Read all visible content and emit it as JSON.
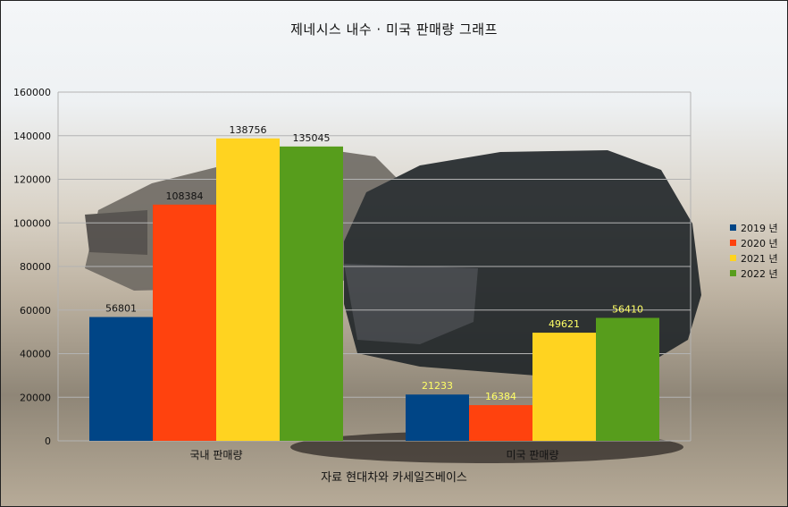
{
  "chart_data": {
    "type": "bar",
    "title": "제네시스 내수 · 미국 판매량 그래프",
    "xlabel": "자료 현대차와 카세일즈베이스",
    "ylabel": "",
    "categories": [
      "국내 판매량",
      "미국 판매량"
    ],
    "series": [
      {
        "name": "2019 년",
        "color": "#004586",
        "values": [
          56801,
          21233
        ]
      },
      {
        "name": "2020 년",
        "color": "#ff420e",
        "values": [
          108384,
          16384
        ]
      },
      {
        "name": "2021 년",
        "color": "#ffd320",
        "values": [
          138756,
          49621
        ]
      },
      {
        "name": "2022 년",
        "color": "#579d1c",
        "values": [
          135045,
          56410
        ]
      }
    ],
    "ylim": [
      0,
      160000
    ],
    "yticks": [
      0,
      20000,
      40000,
      60000,
      80000,
      100000,
      120000,
      140000,
      160000
    ],
    "grid": true,
    "legend": "right",
    "label_colors": {
      "domestic": "#111111",
      "us": "#ffff66"
    }
  }
}
